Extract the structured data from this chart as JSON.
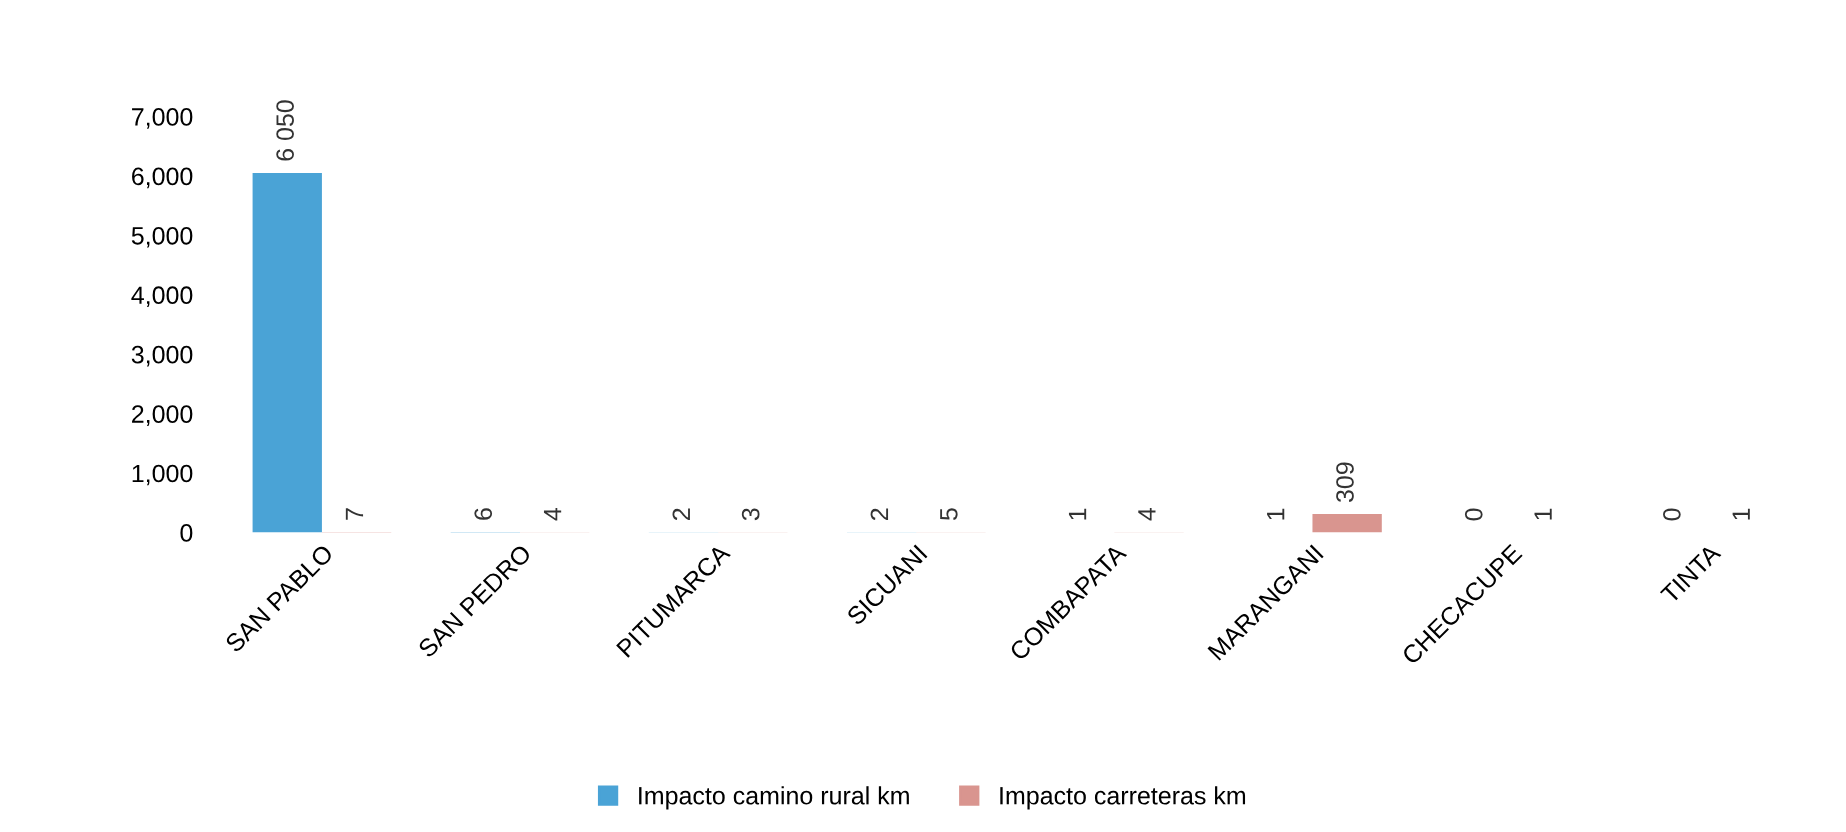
{
  "chart_data": {
    "type": "bar",
    "categories": [
      "SAN PABLO",
      "SAN PEDRO",
      "PITUMARCA",
      "SICUANI",
      "COMBAPATA",
      "MARANGANI",
      "CHECACUPE",
      "TINTA"
    ],
    "series": [
      {
        "name": "Impacto camino rural km",
        "color": "#4aa3d6",
        "values": [
          6050,
          6,
          2,
          2,
          1,
          1,
          0,
          0
        ],
        "value_labels": [
          "6 050",
          "6",
          "2",
          "2",
          "1",
          "1",
          "0",
          "0"
        ]
      },
      {
        "name": "Impacto carreteras km",
        "color": "#d9958f",
        "values": [
          7,
          4,
          3,
          5,
          4,
          309,
          1,
          1
        ],
        "value_labels": [
          "7",
          "4",
          "3",
          "5",
          "4",
          "309",
          "1",
          "1"
        ]
      }
    ],
    "ylim": [
      0,
      7000
    ],
    "yticks": [
      0,
      {
        "value": 1000,
        "label": "1,000"
      },
      {
        "value": 2000,
        "label": "2,000"
      },
      {
        "value": 3000,
        "label": "3,000"
      },
      {
        "value": 4000,
        "label": "4,000"
      },
      {
        "value": 5000,
        "label": "5,000"
      },
      {
        "value": 6000,
        "label": "6,000"
      },
      {
        "value": 7000,
        "label": "7,000"
      }
    ],
    "grid": false,
    "legend": "bottom"
  }
}
